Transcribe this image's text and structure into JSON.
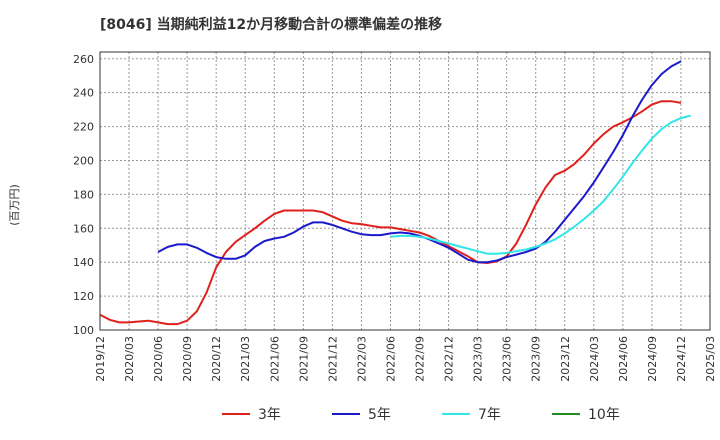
{
  "chart_data": {
    "type": "line",
    "title": "[8046]  当期純利益12か月移動合計の標準偏差の推移",
    "ylabel": "(百万円)",
    "xlabel": "",
    "ylim": [
      100,
      264
    ],
    "yticks": [
      100,
      120,
      140,
      160,
      180,
      200,
      220,
      240,
      260
    ],
    "x_start": "2019/12",
    "x_ticks": [
      "2019/12",
      "2020/03",
      "2020/06",
      "2020/09",
      "2020/12",
      "2021/03",
      "2021/06",
      "2021/09",
      "2021/12",
      "2022/03",
      "2022/06",
      "2022/09",
      "2022/12",
      "2023/03",
      "2023/06",
      "2023/09",
      "2023/12",
      "2024/03",
      "2024/06",
      "2024/09",
      "2024/12",
      "2025/03"
    ],
    "grid": true,
    "legend_position": "bottom",
    "series": [
      {
        "name": "3年",
        "color": "#e0201b",
        "start_month_index": 0,
        "values": [
          109,
          106,
          104.5,
          104.5,
          105,
          105.5,
          104.5,
          103.5,
          103.5,
          105.5,
          111,
          122,
          137,
          146,
          152,
          156,
          160,
          164.5,
          168.5,
          170.5,
          170.5,
          170.5,
          170.5,
          169.5,
          167,
          164.5,
          163,
          162.5,
          161.5,
          160.5,
          160.5,
          159.5,
          158.5,
          157.5,
          155.5,
          152.5,
          149.5,
          146.5,
          143.5,
          140,
          139.5,
          140.5,
          143.5,
          151,
          162,
          174,
          184,
          191.5,
          194,
          198,
          203.5,
          210,
          215.5,
          220,
          222.5,
          225.5,
          229,
          233,
          235,
          235,
          234
        ]
      },
      {
        "name": "5年",
        "color": "#1a1acc",
        "start_month_index": 6,
        "values": [
          146,
          149,
          150.5,
          150.5,
          148.5,
          145.5,
          143,
          142,
          142,
          144,
          149,
          152.5,
          154,
          155,
          157.5,
          161,
          163.5,
          163.5,
          162,
          160,
          158,
          156.5,
          156,
          156,
          157,
          157.5,
          157,
          155.5,
          153.5,
          151,
          148.5,
          145,
          141.5,
          140,
          140,
          141,
          143,
          144.5,
          146,
          148,
          152,
          158,
          165,
          172,
          179,
          187,
          196,
          205,
          215,
          226,
          236,
          244.5,
          251,
          255.5,
          258.5
        ]
      },
      {
        "name": "7年",
        "color": "#33e6e6",
        "start_month_index": 30,
        "values": [
          155,
          155.5,
          155.5,
          155,
          154,
          152.5,
          151,
          149.5,
          148,
          146.5,
          145,
          145,
          145.5,
          146.5,
          147.5,
          149,
          151,
          153.5,
          157,
          161,
          165.5,
          170.5,
          176,
          183,
          190.5,
          198.5,
          206,
          213,
          218.5,
          222.5,
          225,
          226.5
        ]
      },
      {
        "name": "10年",
        "color": "#228b22",
        "start_month_index": 0,
        "values": []
      }
    ]
  }
}
